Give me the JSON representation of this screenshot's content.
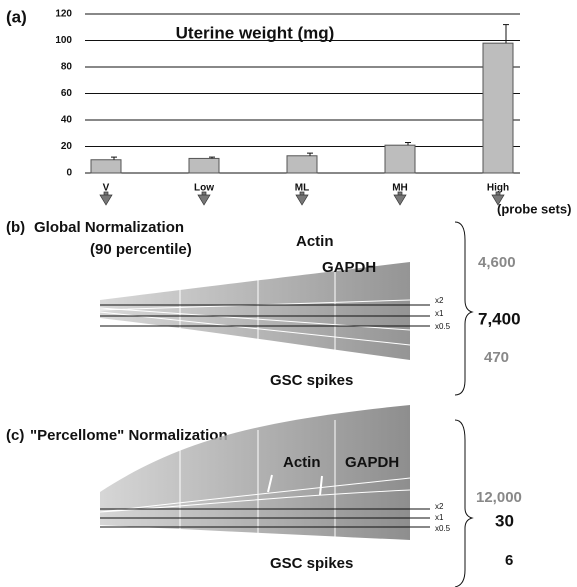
{
  "chart_data": {
    "type": "bar",
    "panel_label": "(a)",
    "title": "Uterine weight (mg)",
    "categories": [
      "V",
      "Low",
      "ML",
      "MH",
      "High"
    ],
    "values": [
      10,
      11,
      13,
      21,
      98
    ],
    "errors": [
      2,
      1,
      2,
      2,
      14
    ],
    "color": "#bdbdbd",
    "ylim": [
      0,
      120
    ],
    "yticks": [
      0,
      20,
      40,
      60,
      80,
      100,
      120
    ],
    "grid": true
  },
  "probe_sets_header": "(probe sets)",
  "panel_b": {
    "label": "(b)",
    "title": "Global Normalization",
    "subtitle": "(90 percentile)",
    "annotations": [
      "Actin",
      "GAPDH"
    ],
    "lines": [
      "x2",
      "x1",
      "x0.5"
    ],
    "footer": "GSC spikes",
    "counts": [
      "4,600",
      "7,400",
      "470"
    ]
  },
  "panel_c": {
    "label": "(c)",
    "title": "\"Percellome\" Normalization",
    "annotations": [
      "Actin",
      "GAPDH"
    ],
    "lines": [
      "x2",
      "x1",
      "x0.5"
    ],
    "footer": "GSC spikes",
    "counts": [
      "12,000",
      "30",
      "6"
    ]
  }
}
